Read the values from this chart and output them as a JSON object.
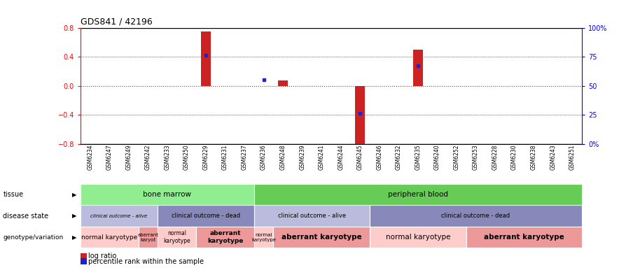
{
  "title": "GDS841 / 42196",
  "samples": [
    "GSM6234",
    "GSM6247",
    "GSM6249",
    "GSM6242",
    "GSM6233",
    "GSM6250",
    "GSM6229",
    "GSM6231",
    "GSM6237",
    "GSM6236",
    "GSM6248",
    "GSM6239",
    "GSM6241",
    "GSM6244",
    "GSM6245",
    "GSM6246",
    "GSM6232",
    "GSM6235",
    "GSM6240",
    "GSM6252",
    "GSM6253",
    "GSM6228",
    "GSM6230",
    "GSM6238",
    "GSM6243",
    "GSM6251"
  ],
  "log_ratio": [
    0,
    0,
    0,
    0,
    0,
    0,
    0.75,
    0,
    0,
    0,
    0.07,
    0,
    0,
    0,
    -0.83,
    0,
    0,
    0.5,
    0,
    0,
    0,
    0,
    0,
    0,
    0,
    0
  ],
  "percentile_rank": [
    null,
    null,
    null,
    null,
    null,
    null,
    0.42,
    null,
    null,
    0.08,
    null,
    null,
    null,
    null,
    -0.38,
    null,
    null,
    0.28,
    null,
    null,
    null,
    null,
    null,
    null,
    null,
    null
  ],
  "ylim": [
    -0.8,
    0.8
  ],
  "yticks": [
    -0.8,
    -0.4,
    0.0,
    0.4,
    0.8
  ],
  "tissue_groups": [
    {
      "label": "bone marrow",
      "start": 0,
      "end": 9,
      "color": "#90EE90"
    },
    {
      "label": "peripheral blood",
      "start": 9,
      "end": 26,
      "color": "#66CC55"
    }
  ],
  "disease_groups": [
    {
      "label": "clinical outcome - alive",
      "start": 0,
      "end": 4,
      "color": "#BBBBDD"
    },
    {
      "label": "clinical outcome - dead",
      "start": 4,
      "end": 9,
      "color": "#8888BB"
    },
    {
      "label": "clinical outcome - alive",
      "start": 9,
      "end": 15,
      "color": "#BBBBDD"
    },
    {
      "label": "clinical outcome - dead",
      "start": 15,
      "end": 26,
      "color": "#8888BB"
    }
  ],
  "genotype_groups": [
    {
      "label": "normal karyotype",
      "start": 0,
      "end": 3,
      "color": "#FFCCCC"
    },
    {
      "label": "aberrant\nkaryot",
      "start": 3,
      "end": 4,
      "color": "#EE9999"
    },
    {
      "label": "normal\nkaryotype",
      "start": 4,
      "end": 6,
      "color": "#FFCCCC"
    },
    {
      "label": "aberrant\nkaryotype",
      "start": 6,
      "end": 9,
      "color": "#EE9999"
    },
    {
      "label": "normal\nkaryotype",
      "start": 9,
      "end": 10,
      "color": "#FFCCCC"
    },
    {
      "label": "aberrant karyotype",
      "start": 10,
      "end": 15,
      "color": "#EE9999"
    },
    {
      "label": "normal karyotype",
      "start": 15,
      "end": 20,
      "color": "#FFCCCC"
    },
    {
      "label": "aberrant karyotype",
      "start": 20,
      "end": 26,
      "color": "#EE9999"
    }
  ],
  "bar_color": "#CC2222",
  "dot_color": "#2222CC",
  "annotation_row_labels": [
    "tissue",
    "disease state",
    "genotype/variation"
  ],
  "legend_items": [
    "log ratio",
    "percentile rank within the sample"
  ],
  "legend_colors": [
    "#CC2222",
    "#2222CC"
  ]
}
